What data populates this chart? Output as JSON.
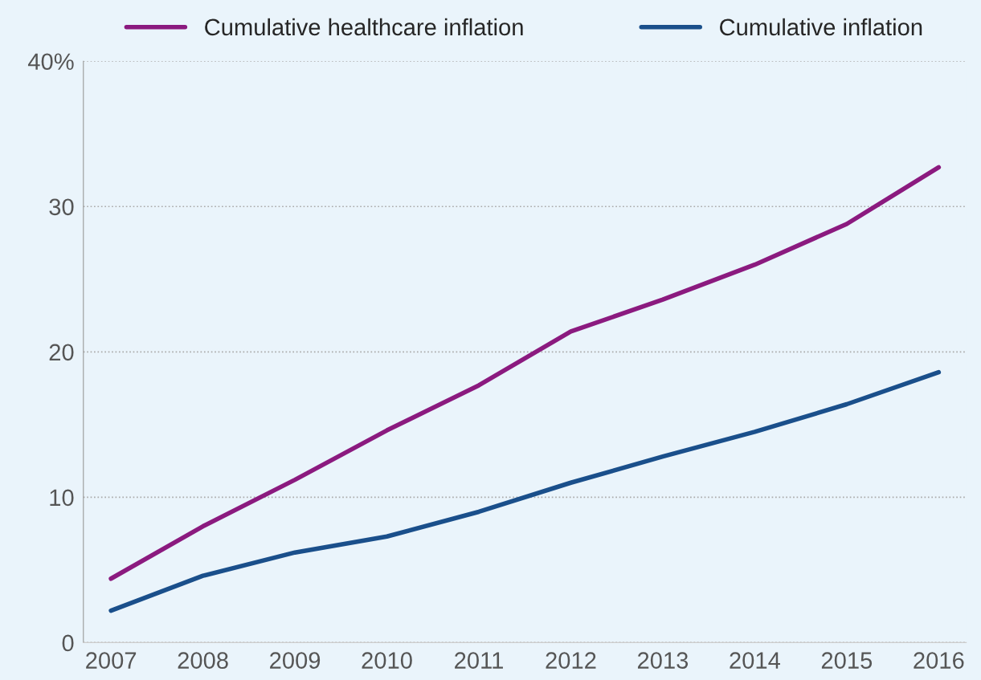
{
  "chart_data": {
    "type": "line",
    "categories": [
      "2007",
      "2008",
      "2009",
      "2010",
      "2011",
      "2012",
      "2013",
      "2014",
      "2015",
      "2016"
    ],
    "series": [
      {
        "name": "Cumulative healthcare inflation",
        "color": "#8b1a7f",
        "values": [
          4.4,
          8.0,
          11.2,
          14.6,
          17.7,
          21.4,
          23.6,
          26.0,
          28.8,
          32.7
        ]
      },
      {
        "name": "Cumulative inflation",
        "color": "#1a4f8b",
        "values": [
          2.2,
          4.6,
          6.2,
          7.3,
          9.0,
          11.0,
          12.8,
          14.5,
          16.4,
          18.6
        ]
      }
    ],
    "ylim": [
      0,
      40
    ],
    "yticks": [
      0,
      10,
      20,
      30,
      {
        "value": 40,
        "label": "40%"
      }
    ],
    "grid": "y",
    "legend": "top",
    "line_style": "solid",
    "marker": "none"
  }
}
